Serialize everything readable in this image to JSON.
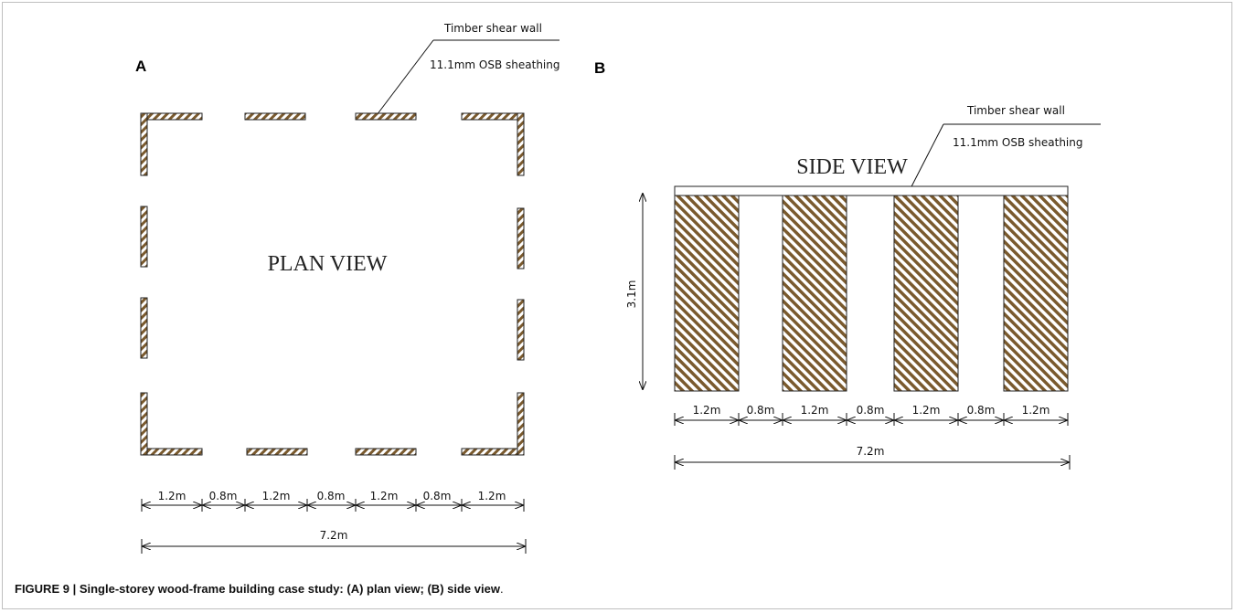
{
  "panel_a": {
    "letter": "A",
    "title": "PLAN VIEW",
    "annotation_line1": "Timber shear wall",
    "annotation_line2": "11.1mm OSB sheathing",
    "dims": [
      "1.2m",
      "0.8m",
      "1.2m",
      "0.8m",
      "1.2m",
      "0.8m",
      "1.2m"
    ],
    "total": "7.2m"
  },
  "panel_b": {
    "letter": "B",
    "title": "SIDE VIEW",
    "annotation_line1": "Timber shear wall",
    "annotation_line2": "11.1mm OSB sheathing",
    "height": "3.1m",
    "dims": [
      "1.2m",
      "0.8m",
      "1.2m",
      "0.8m",
      "1.2m",
      "0.8m",
      "1.2m"
    ],
    "total": "7.2m"
  },
  "caption": {
    "bold": "FIGURE 9 | Single-storey wood-frame building case study: (A) plan view; (B) side view",
    "tail": "."
  },
  "colors": {
    "hatch": "#7a5a2e",
    "outline": "#222222"
  }
}
